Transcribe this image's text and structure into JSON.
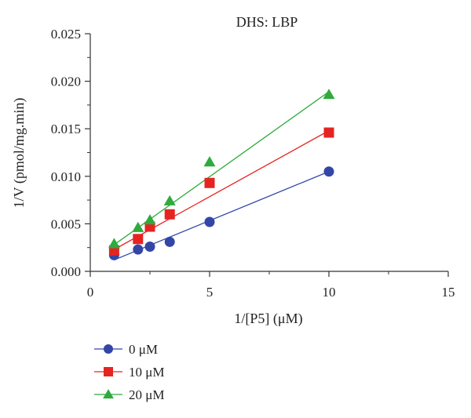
{
  "chart_data": {
    "type": "scatter",
    "title": "DHS: LBP",
    "xlabel": "1/[P5] (μM)",
    "ylabel": "1/V (pmol/mg.min)",
    "xlim": [
      0,
      15
    ],
    "ylim": [
      0,
      0.025
    ],
    "x_ticks": [
      0,
      5,
      10,
      15
    ],
    "y_ticks": [
      0.0,
      0.005,
      0.01,
      0.015,
      0.02,
      0.025
    ],
    "x_tick_labels": [
      "0",
      "5",
      "10",
      "15"
    ],
    "y_tick_labels": [
      "0.000",
      "0.005",
      "0.010",
      "0.015",
      "0.020",
      "0.025"
    ],
    "grid": false,
    "legend_position": "bottom-left",
    "series": [
      {
        "name": "0 μM",
        "marker": "circle",
        "color": "#3346a8",
        "x": [
          1,
          2,
          2.5,
          3.33,
          5,
          10
        ],
        "y": [
          0.0017,
          0.0023,
          0.0026,
          0.0031,
          0.0052,
          0.0105
        ],
        "fit": [
          [
            1,
            0.0012
          ],
          [
            10,
            0.0105
          ]
        ]
      },
      {
        "name": "10 μM",
        "marker": "square",
        "color": "#e52421",
        "x": [
          1,
          2,
          2.5,
          3.33,
          5,
          10
        ],
        "y": [
          0.0022,
          0.0034,
          0.0047,
          0.006,
          0.0093,
          0.0146
        ],
        "fit": [
          [
            1,
            0.0023
          ],
          [
            10,
            0.0148
          ]
        ]
      },
      {
        "name": "20 μM",
        "marker": "triangle",
        "color": "#2eab3c",
        "x": [
          1,
          2,
          2.5,
          3.33,
          5,
          10
        ],
        "y": [
          0.0029,
          0.0046,
          0.0054,
          0.0074,
          0.0115,
          0.0186
        ],
        "fit": [
          [
            1,
            0.0028
          ],
          [
            10,
            0.0189
          ]
        ]
      }
    ]
  }
}
